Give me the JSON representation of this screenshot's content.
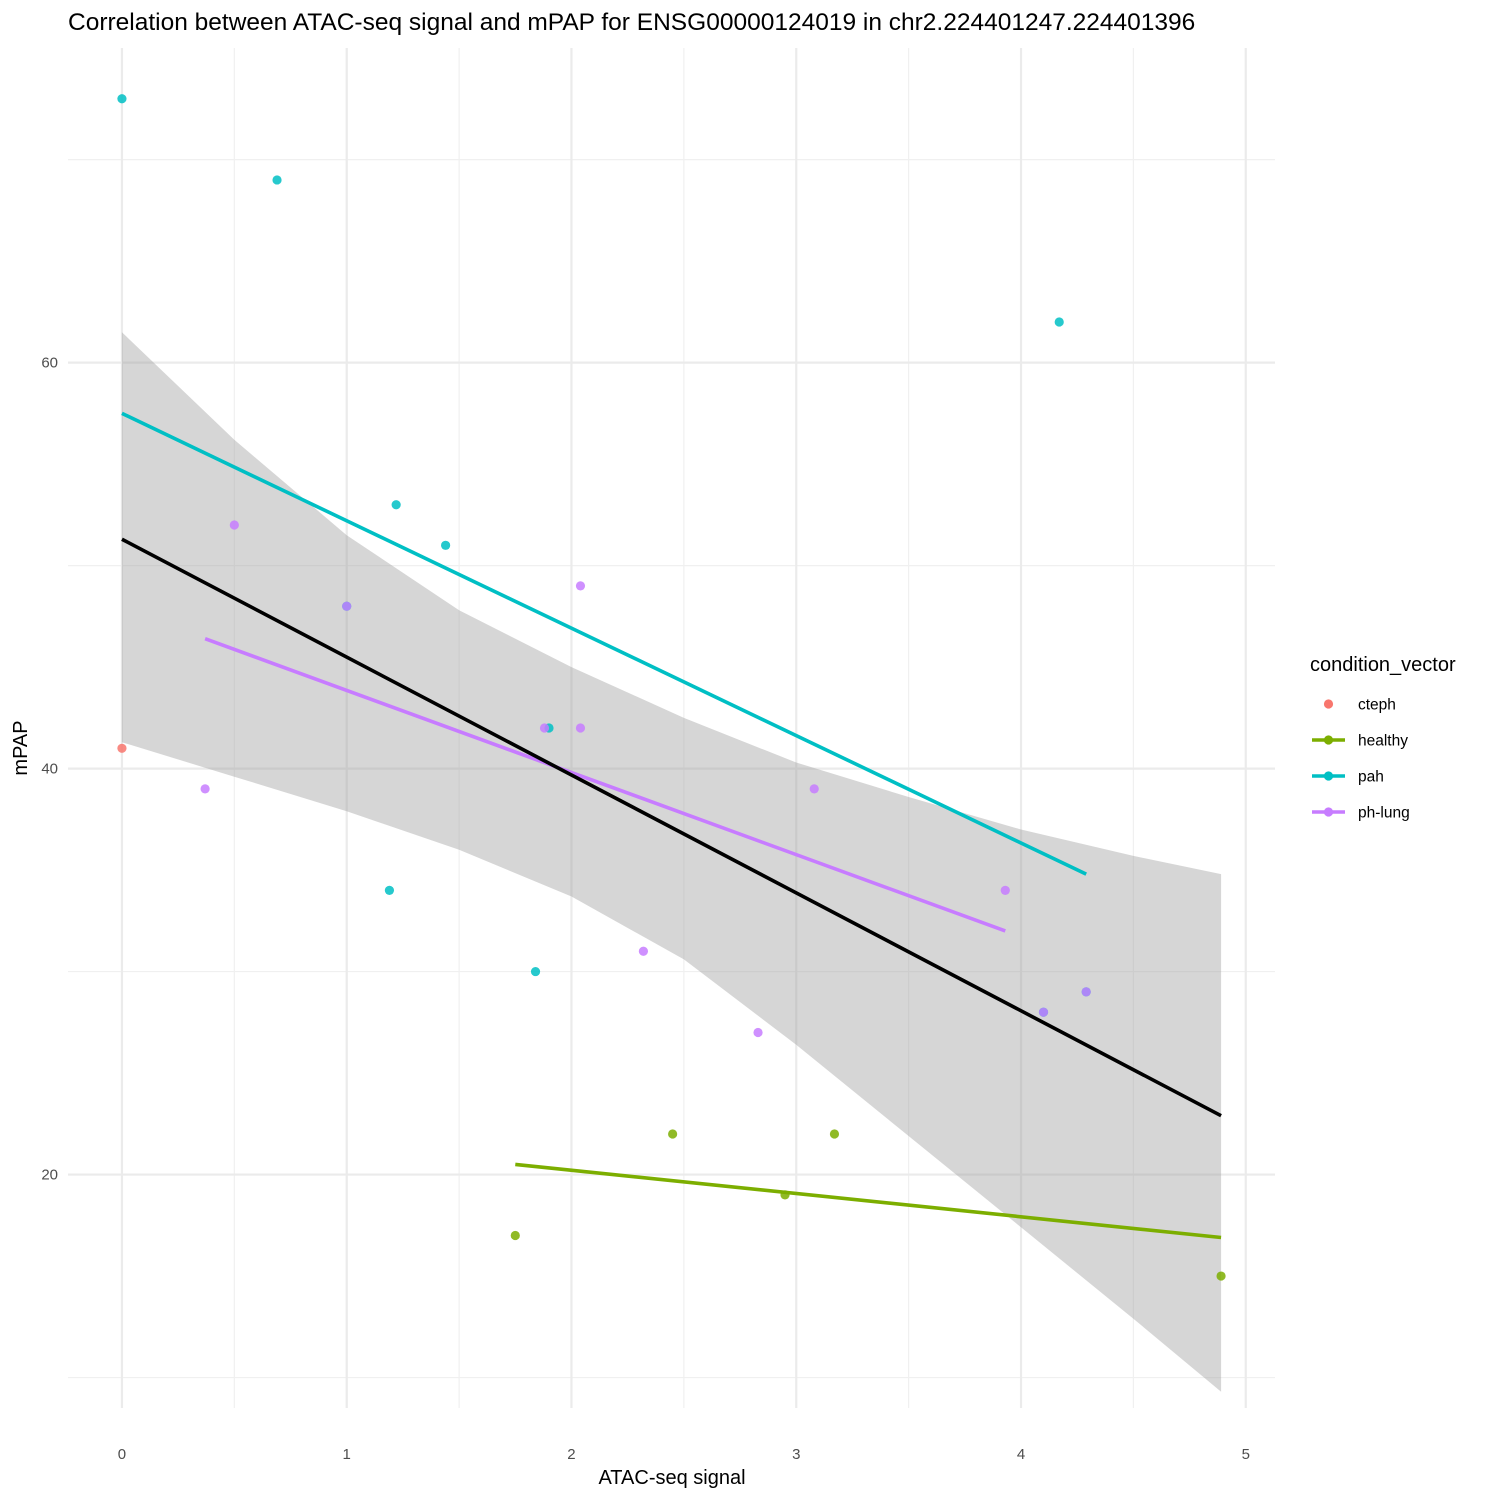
{
  "chart_data": {
    "type": "scatter",
    "title": "Correlation between ATAC-seq signal and mPAP for ENSG00000124019 in chr2.224401247.224401396",
    "xlabel": "ATAC-seq signal",
    "ylabel": "mPAP",
    "xlim": [
      -0.24,
      5.13
    ],
    "ylim": [
      8.5,
      75.5
    ],
    "x_ticks": [
      0,
      1,
      2,
      3,
      4,
      5
    ],
    "x_tick_labels": [
      "0",
      "1",
      "2",
      "3",
      "4",
      "5"
    ],
    "y_ticks": [
      20,
      40,
      60
    ],
    "y_tick_labels": [
      "20",
      "40",
      "60"
    ],
    "y_minor_grid": [
      10,
      30,
      50,
      70
    ],
    "grid": true,
    "legend": {
      "title": "condition_vector",
      "position": "right",
      "entries": [
        {
          "name": "cteph",
          "color": "#F8766D",
          "has_line": false
        },
        {
          "name": "healthy",
          "color": "#7CAE00",
          "has_line": true
        },
        {
          "name": "pah",
          "color": "#00BFC4",
          "has_line": true
        },
        {
          "name": "ph-lung",
          "color": "#C77CFF",
          "has_line": true
        }
      ]
    },
    "series": [
      {
        "name": "cteph",
        "color": "#F8766D",
        "points": [
          [
            0.0,
            41.0
          ]
        ]
      },
      {
        "name": "healthy",
        "color": "#7CAE00",
        "points": [
          [
            1.75,
            17.0
          ],
          [
            2.45,
            22.0
          ],
          [
            2.95,
            19.0
          ],
          [
            3.17,
            22.0
          ],
          [
            4.89,
            15.0
          ]
        ]
      },
      {
        "name": "pah",
        "color": "#00BFC4",
        "points": [
          [
            0.0,
            73.0
          ],
          [
            0.69,
            69.0
          ],
          [
            1.0,
            48.0
          ],
          [
            1.19,
            34.0
          ],
          [
            1.22,
            53.0
          ],
          [
            1.44,
            51.0
          ],
          [
            1.84,
            30.0
          ],
          [
            1.9,
            42.0
          ],
          [
            4.1,
            28.0
          ],
          [
            4.17,
            62.0
          ],
          [
            4.29,
            29.0
          ]
        ]
      },
      {
        "name": "ph-lung",
        "color": "#C77CFF",
        "points": [
          [
            0.37,
            39.0
          ],
          [
            0.5,
            52.0
          ],
          [
            1.0,
            48.0
          ],
          [
            1.88,
            42.0
          ],
          [
            2.04,
            49.0
          ],
          [
            2.04,
            42.0
          ],
          [
            2.32,
            31.0
          ],
          [
            2.83,
            27.0
          ],
          [
            3.08,
            39.0
          ],
          [
            3.93,
            34.0
          ],
          [
            4.1,
            28.0
          ],
          [
            4.29,
            29.0
          ]
        ]
      }
    ],
    "fit_lines": [
      {
        "name": "healthy",
        "color": "#7CAE00",
        "x": [
          1.75,
          4.89
        ],
        "y": [
          20.5,
          16.9
        ]
      },
      {
        "name": "pah",
        "color": "#00BFC4",
        "x": [
          0.0,
          4.29
        ],
        "y": [
          57.5,
          34.8
        ]
      },
      {
        "name": "ph-lung",
        "color": "#C77CFF",
        "x": [
          0.37,
          3.93
        ],
        "y": [
          46.4,
          32.0
        ]
      },
      {
        "name": "overall",
        "color": "#000000",
        "x": [
          0.0,
          4.89
        ],
        "y": [
          51.3,
          22.9
        ]
      }
    ],
    "confidence_band": {
      "color": "#999999",
      "opacity": 0.4,
      "x": [
        0.0,
        0.5,
        1.0,
        1.5,
        2.0,
        2.5,
        3.0,
        3.5,
        4.0,
        4.5,
        4.89
      ],
      "upper": [
        61.5,
        56.2,
        51.5,
        47.8,
        45.0,
        42.5,
        40.3,
        38.6,
        37.0,
        35.7,
        34.8
      ],
      "lower": [
        41.3,
        39.6,
        37.9,
        36.0,
        33.7,
        30.6,
        26.4,
        21.9,
        17.4,
        12.9,
        9.3
      ]
    }
  }
}
